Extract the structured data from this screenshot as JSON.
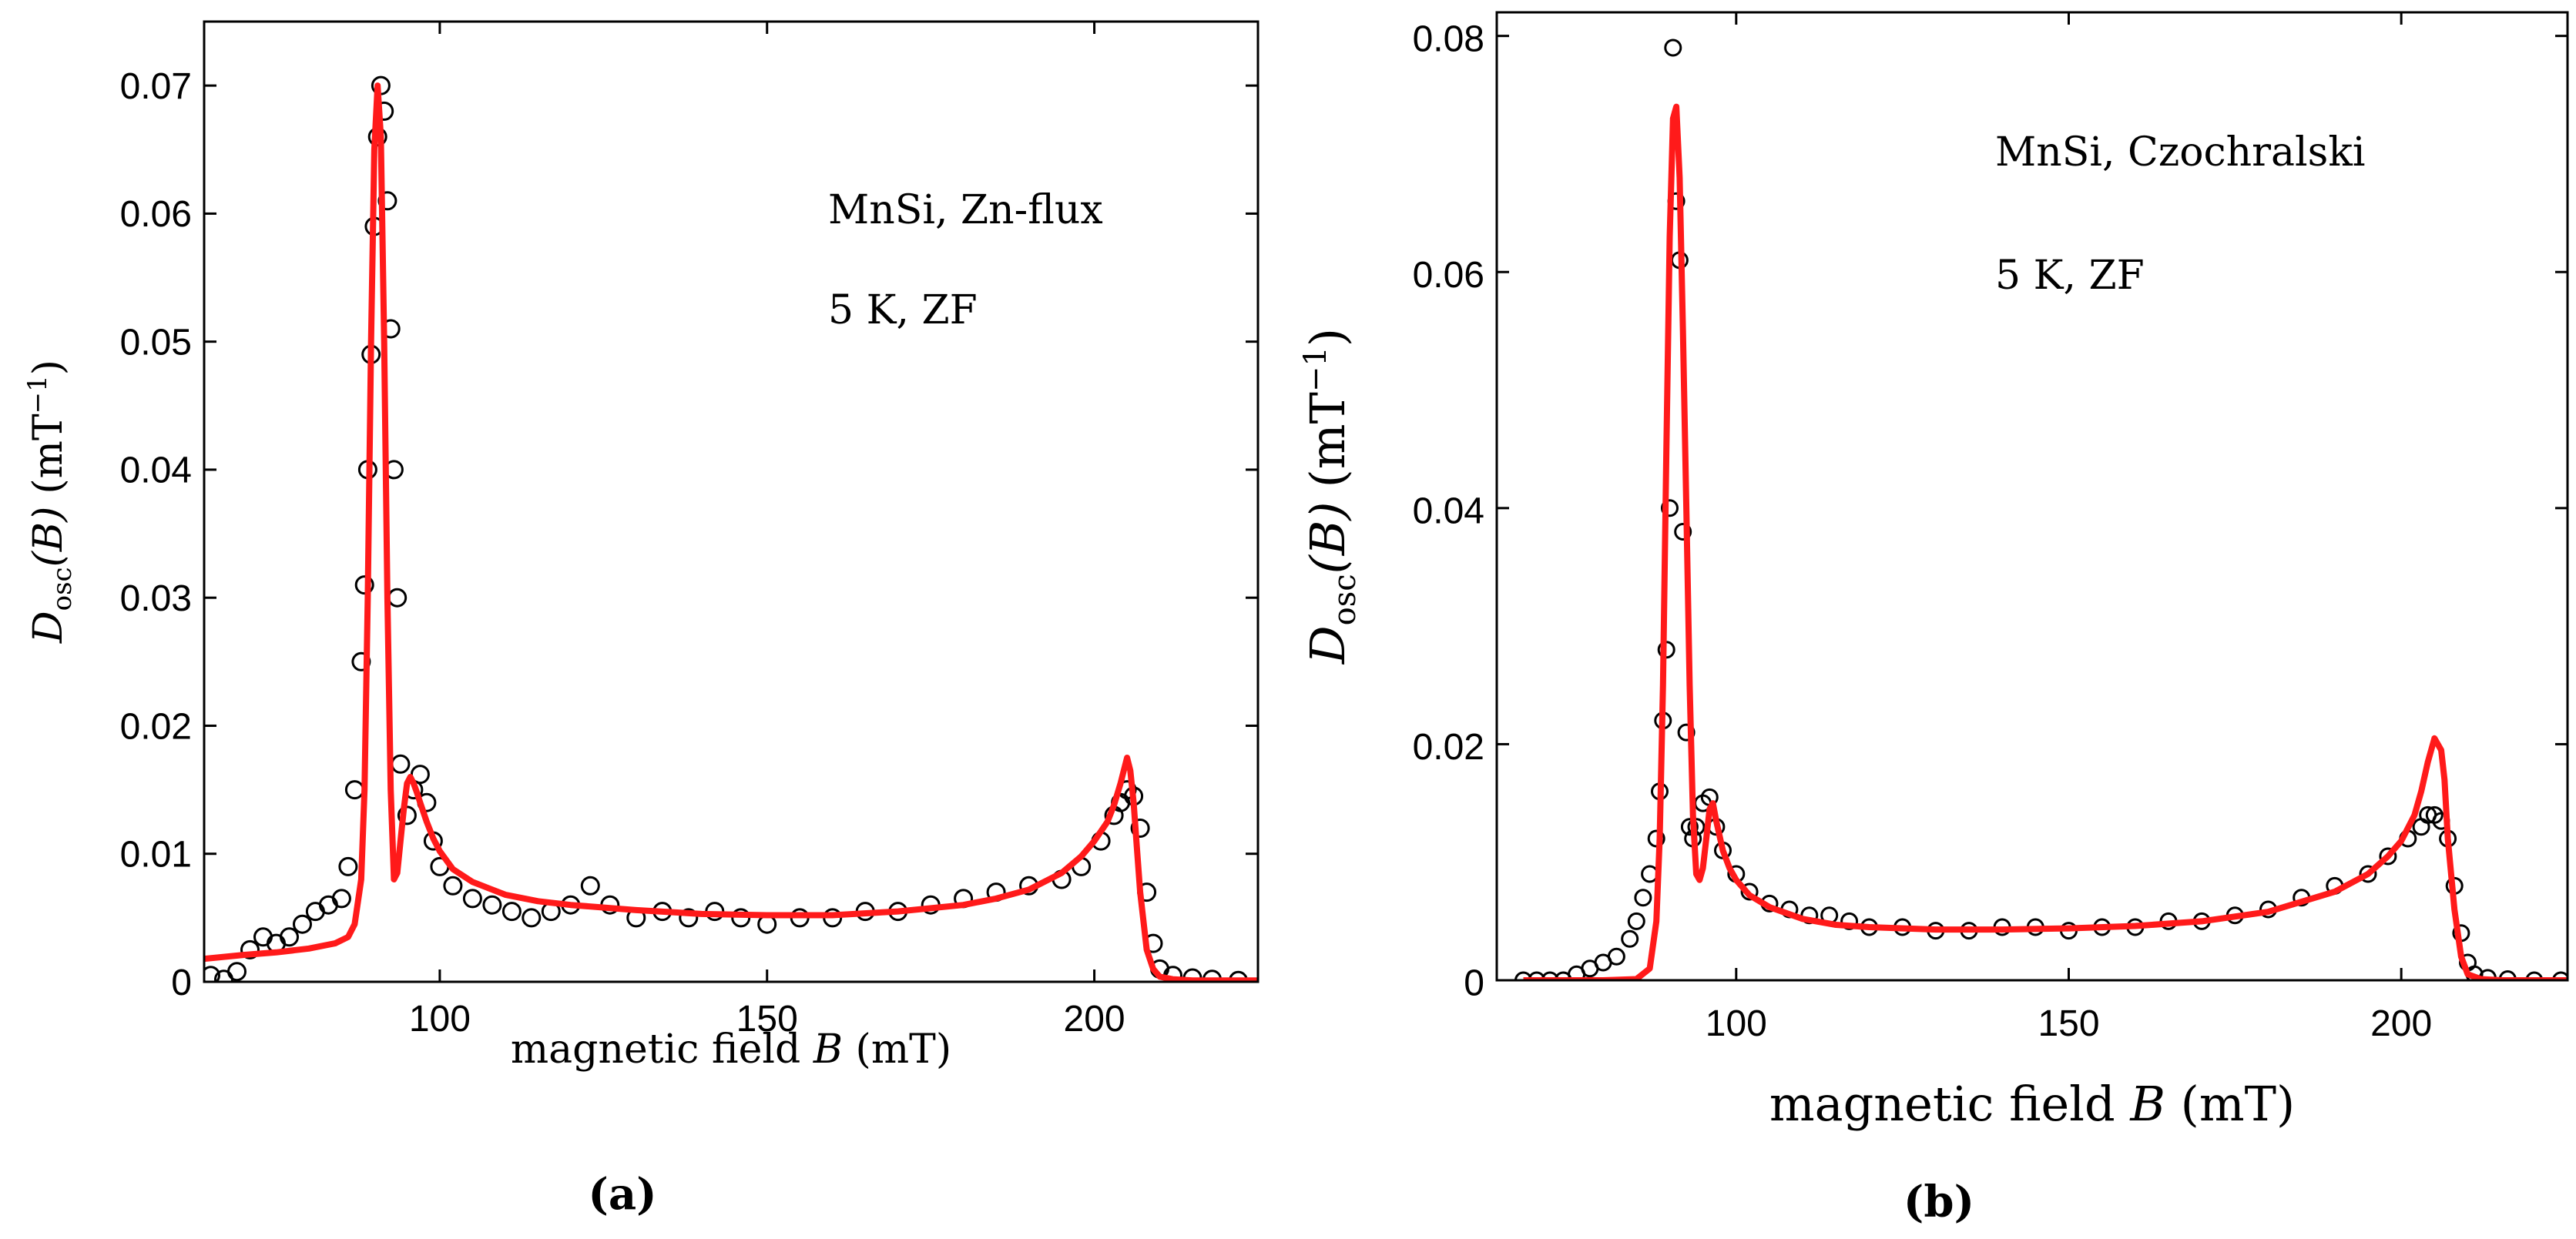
{
  "figure": {
    "panels": [
      {
        "panel_label": "(a)",
        "annotation_lines": [
          "MnSi, Zn-flux",
          "5 K, ZF"
        ]
      },
      {
        "panel_label": "(b)",
        "annotation_lines": [
          "MnSi, Czochralski",
          "5 K, ZF"
        ]
      }
    ],
    "xlabel_text": "magnetic field ",
    "xlabel_var": "B",
    "xlabel_unit": " (mT)",
    "ylabel_var": "D",
    "ylabel_sub": "osc",
    "ylabel_arg": "(B)",
    "ylabel_unit": "(mT",
    "ylabel_unit_exp": "−1",
    "ylabel_unit_close": ")"
  },
  "colors": {
    "data_markers": "#000000",
    "fit_line": "#ff1a1a",
    "axes": "#000000"
  },
  "chart_data": [
    {
      "type": "scatter",
      "xlim": [
        64,
        225
      ],
      "ylim": [
        0,
        0.075
      ],
      "xticks": [
        100,
        150,
        200
      ],
      "yticks": [
        0,
        0.01,
        0.02,
        0.03,
        0.04,
        0.05,
        0.06,
        0.07
      ],
      "ytick_labels": [
        "0",
        "0.01",
        "0.02",
        "0.03",
        "0.04",
        "0.05",
        "0.06",
        "0.07"
      ],
      "grid": false,
      "series": [
        {
          "role": "data",
          "marker": "open-circle",
          "x": [
            65,
            67,
            69,
            71,
            73,
            75,
            77,
            79,
            81,
            83,
            85,
            86,
            87,
            88,
            88.5,
            89,
            89.5,
            90,
            90.5,
            91,
            91.5,
            92,
            92.5,
            93,
            93.5,
            94,
            95,
            96,
            97,
            98,
            99,
            100,
            102,
            105,
            108,
            111,
            114,
            117,
            120,
            123,
            126,
            130,
            134,
            138,
            142,
            146,
            150,
            155,
            160,
            165,
            170,
            175,
            180,
            185,
            190,
            195,
            198,
            201,
            203,
            204,
            205,
            206,
            207,
            208,
            209,
            210,
            212,
            215,
            218,
            222
          ],
          "y": [
            0.0005,
            0.0002,
            0.0008,
            0.0025,
            0.0035,
            0.003,
            0.0035,
            0.0045,
            0.0055,
            0.006,
            0.0065,
            0.009,
            0.015,
            0.025,
            0.031,
            0.04,
            0.049,
            0.059,
            0.066,
            0.07,
            0.068,
            0.061,
            0.051,
            0.04,
            0.03,
            0.017,
            0.013,
            0.015,
            0.0162,
            0.014,
            0.011,
            0.009,
            0.0075,
            0.0065,
            0.006,
            0.0055,
            0.005,
            0.0055,
            0.006,
            0.0075,
            0.006,
            0.005,
            0.0055,
            0.005,
            0.0055,
            0.005,
            0.0045,
            0.005,
            0.005,
            0.0055,
            0.0055,
            0.006,
            0.0065,
            0.007,
            0.0075,
            0.008,
            0.009,
            0.011,
            0.013,
            0.014,
            0.015,
            0.0145,
            0.012,
            0.007,
            0.003,
            0.001,
            0.0005,
            0.0003,
            0.0002,
            0.0001
          ]
        },
        {
          "role": "fit",
          "style": "solid line",
          "x": [
            64,
            70,
            75,
            80,
            84,
            86,
            87,
            88,
            88.5,
            89,
            89.5,
            90,
            90.5,
            91,
            91.5,
            92,
            92.5,
            93,
            93.5,
            94,
            94.5,
            95,
            95.5,
            96,
            96.5,
            97,
            98,
            99,
            100,
            102,
            105,
            110,
            115,
            120,
            130,
            140,
            150,
            160,
            170,
            180,
            185,
            190,
            195,
            198,
            200,
            202,
            203,
            204,
            204.5,
            205,
            205.5,
            206,
            206.5,
            207,
            208,
            209,
            210,
            212,
            215,
            220,
            225
          ],
          "y": [
            0.0018,
            0.0021,
            0.0023,
            0.0026,
            0.003,
            0.0035,
            0.0045,
            0.008,
            0.015,
            0.03,
            0.05,
            0.065,
            0.07,
            0.066,
            0.05,
            0.03,
            0.015,
            0.008,
            0.0085,
            0.011,
            0.0135,
            0.0155,
            0.016,
            0.0155,
            0.0148,
            0.014,
            0.0125,
            0.0112,
            0.0102,
            0.0088,
            0.0078,
            0.0068,
            0.0063,
            0.006,
            0.0056,
            0.0053,
            0.0052,
            0.0052,
            0.0055,
            0.006,
            0.0065,
            0.0072,
            0.0085,
            0.0098,
            0.011,
            0.0125,
            0.0138,
            0.0155,
            0.0165,
            0.0175,
            0.0165,
            0.014,
            0.0105,
            0.007,
            0.0025,
            0.001,
            0.0004,
            0.0002,
            0.0001,
            0.0001,
            0.0001
          ]
        }
      ]
    },
    {
      "type": "scatter",
      "xlim": [
        64,
        225
      ],
      "ylim": [
        0,
        0.082
      ],
      "xticks": [
        100,
        150,
        200
      ],
      "yticks": [
        0,
        0.02,
        0.04,
        0.06,
        0.08
      ],
      "ytick_labels": [
        "0",
        "0.02",
        "0.04",
        "0.06",
        "0.08"
      ],
      "grid": false,
      "series": [
        {
          "role": "data",
          "marker": "open-circle",
          "x": [
            68,
            70,
            72,
            74,
            76,
            78,
            80,
            82,
            84,
            85,
            86,
            87,
            88,
            88.5,
            89,
            89.5,
            90,
            90.5,
            91,
            91.5,
            92,
            92.5,
            93,
            93.5,
            94,
            95,
            96,
            97,
            98,
            100,
            102,
            105,
            108,
            111,
            114,
            117,
            120,
            125,
            130,
            135,
            140,
            145,
            150,
            155,
            160,
            165,
            170,
            175,
            180,
            185,
            190,
            195,
            198,
            201,
            203,
            204,
            205,
            206,
            207,
            208,
            209,
            210,
            211,
            213,
            216,
            220,
            224
          ],
          "y": [
            0,
            0,
            0,
            0,
            0.0005,
            0.001,
            0.0015,
            0.002,
            0.0035,
            0.005,
            0.007,
            0.009,
            0.012,
            0.016,
            0.022,
            0.028,
            0.04,
            0.079,
            0.066,
            0.061,
            0.038,
            0.021,
            0.013,
            0.012,
            0.013,
            0.015,
            0.0155,
            0.013,
            0.011,
            0.009,
            0.0075,
            0.0065,
            0.006,
            0.0055,
            0.0055,
            0.005,
            0.0045,
            0.0045,
            0.0042,
            0.0042,
            0.0045,
            0.0045,
            0.0042,
            0.0045,
            0.0045,
            0.005,
            0.005,
            0.0055,
            0.006,
            0.007,
            0.008,
            0.009,
            0.0105,
            0.012,
            0.013,
            0.014,
            0.014,
            0.0135,
            0.012,
            0.008,
            0.004,
            0.0015,
            0.0005,
            0.0002,
            0.0001,
            0,
            0
          ]
        },
        {
          "role": "fit",
          "style": "solid line",
          "x": [
            68,
            80,
            85,
            87,
            88,
            88.5,
            89,
            89.5,
            90,
            90.5,
            91,
            91.5,
            92,
            92.5,
            93,
            93.5,
            94,
            94.5,
            95,
            95.5,
            96,
            96.5,
            97,
            98,
            99,
            100,
            102,
            105,
            110,
            115,
            120,
            130,
            140,
            150,
            160,
            170,
            180,
            190,
            195,
            198,
            200,
            202,
            203,
            204,
            205,
            206,
            206.5,
            207,
            208,
            209,
            210,
            212,
            215,
            220,
            225
          ],
          "y": [
            0,
            0,
            0.0001,
            0.001,
            0.005,
            0.012,
            0.025,
            0.045,
            0.063,
            0.073,
            0.074,
            0.068,
            0.055,
            0.04,
            0.025,
            0.014,
            0.009,
            0.0085,
            0.0095,
            0.012,
            0.0145,
            0.015,
            0.0135,
            0.011,
            0.0095,
            0.0085,
            0.0072,
            0.0062,
            0.0052,
            0.0047,
            0.0045,
            0.0043,
            0.0043,
            0.0044,
            0.0046,
            0.005,
            0.0058,
            0.0075,
            0.009,
            0.0105,
            0.0118,
            0.014,
            0.016,
            0.0185,
            0.0205,
            0.0195,
            0.017,
            0.012,
            0.006,
            0.002,
            0.0005,
            0.0001,
            0,
            0,
            0
          ]
        }
      ]
    }
  ]
}
